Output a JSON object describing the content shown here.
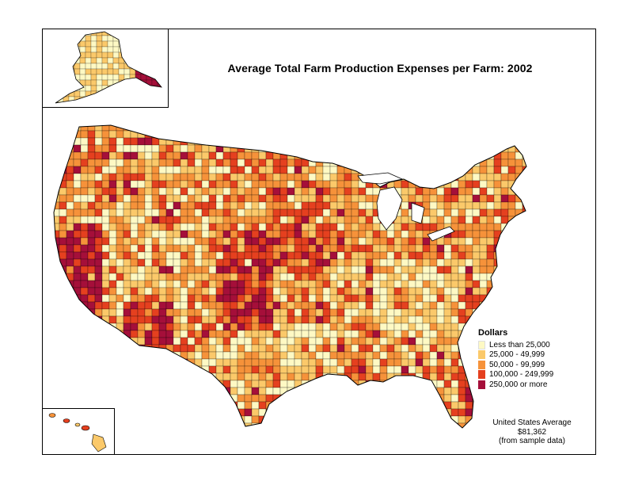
{
  "title": "Average Total Farm Production Expenses per Farm:  2002",
  "legend": {
    "title": "Dollars",
    "items": [
      {
        "label": "Less than 25,000",
        "color": "#fef9c4"
      },
      {
        "label": "25,000 - 49,999",
        "color": "#fbc96a"
      },
      {
        "label": "50,000 - 99,999",
        "color": "#f6923a"
      },
      {
        "label": "100,000 - 249,999",
        "color": "#e5401f"
      },
      {
        "label": "250,000 or more",
        "color": "#a50f3a"
      }
    ]
  },
  "average": {
    "line1": "United States Average",
    "line2": "$81,362",
    "line3": "(from sample data)"
  }
}
